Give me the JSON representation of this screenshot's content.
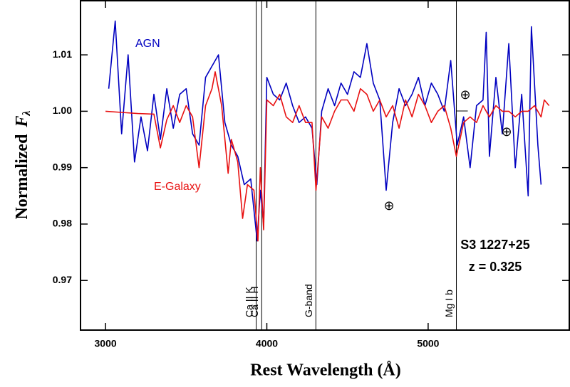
{
  "chart_data": {
    "type": "line",
    "xlabel": "Rest Wavelength  (Å)",
    "ylabel": {
      "text": "Normalized",
      "symbol": "F",
      "subscript": "λ"
    },
    "xlim": [
      2845,
      5875
    ],
    "ylim": [
      0.9612,
      1.0196
    ],
    "xticks": [
      3000,
      4000,
      5000
    ],
    "yticks": [
      0.97,
      0.98,
      0.99,
      {
        "value": 1,
        "label": "1.00"
      },
      1.01
    ],
    "series": [
      {
        "name": "AGN",
        "color": "#0000c0",
        "x": [
          3020,
          3060,
          3100,
          3140,
          3180,
          3220,
          3260,
          3300,
          3340,
          3380,
          3420,
          3460,
          3500,
          3540,
          3580,
          3620,
          3660,
          3700,
          3740,
          3780,
          3820,
          3860,
          3900,
          3940,
          3960,
          3980,
          4000,
          4040,
          4080,
          4120,
          4160,
          4200,
          4240,
          4280,
          4310,
          4340,
          4380,
          4420,
          4460,
          4500,
          4540,
          4580,
          4620,
          4660,
          4700,
          4740,
          4780,
          4820,
          4860,
          4900,
          4940,
          4980,
          5020,
          5060,
          5100,
          5140,
          5180,
          5220,
          5260,
          5300,
          5340,
          5360,
          5380,
          5420,
          5460,
          5500,
          5540,
          5580,
          5620,
          5640,
          5680,
          5700
        ],
        "values": [
          1.004,
          1.016,
          0.996,
          1.01,
          0.991,
          0.999,
          0.993,
          1.003,
          0.995,
          1.004,
          0.997,
          1.003,
          1.004,
          0.996,
          0.994,
          1.006,
          1.008,
          1.01,
          0.998,
          0.994,
          0.992,
          0.987,
          0.988,
          0.977,
          0.986,
          0.98,
          1.006,
          1.003,
          1.002,
          1.005,
          1.001,
          0.998,
          0.999,
          0.997,
          0.987,
          1.0,
          1.004,
          1.001,
          1.005,
          1.003,
          1.007,
          1.006,
          1.012,
          1.005,
          1.002,
          0.986,
          0.998,
          1.004,
          1.001,
          1.003,
          1.006,
          1.001,
          1.005,
          1.003,
          1.0,
          1.009,
          0.994,
          0.999,
          0.99,
          1.001,
          1.002,
          1.014,
          0.992,
          1.006,
          0.996,
          1.012,
          0.99,
          1.003,
          0.985,
          1.015,
          0.994,
          0.987
        ]
      },
      {
        "name": "E-Galaxy",
        "color": "#e81010",
        "x": [
          3000,
          3100,
          3200,
          3300,
          3340,
          3380,
          3420,
          3460,
          3500,
          3540,
          3580,
          3620,
          3660,
          3680,
          3720,
          3760,
          3780,
          3820,
          3850,
          3880,
          3920,
          3945,
          3960,
          3980,
          4000,
          4040,
          4080,
          4120,
          4160,
          4200,
          4240,
          4280,
          4305,
          4340,
          4380,
          4420,
          4460,
          4500,
          4540,
          4580,
          4620,
          4660,
          4700,
          4740,
          4780,
          4820,
          4860,
          4900,
          4940,
          4980,
          5020,
          5060,
          5100,
          5140,
          5175,
          5220,
          5260,
          5300,
          5340,
          5380,
          5420,
          5460,
          5500,
          5540,
          5580,
          5620,
          5660,
          5700,
          5720,
          5750
        ],
        "values": [
          1.0,
          0.9998,
          0.9996,
          0.9995,
          0.9935,
          0.9985,
          1.001,
          0.998,
          1.001,
          0.999,
          0.99,
          1.001,
          1.004,
          1.007,
          1.001,
          0.989,
          0.995,
          0.991,
          0.981,
          0.987,
          0.986,
          0.977,
          0.99,
          0.979,
          1.002,
          1.001,
          1.003,
          0.999,
          0.998,
          1.001,
          0.998,
          0.998,
          0.986,
          0.999,
          0.997,
          1.0,
          1.002,
          1.002,
          1.0,
          1.004,
          1.003,
          1.0,
          1.002,
          0.999,
          1.001,
          0.997,
          1.002,
          0.999,
          1.003,
          1.001,
          0.998,
          1.0,
          1.001,
          0.997,
          0.992,
          0.998,
          0.999,
          0.998,
          1.001,
          0.999,
          1.001,
          1.0,
          1.0,
          0.999,
          1.0,
          1.0,
          1.001,
          0.999,
          1.002,
          1.001
        ]
      }
    ],
    "lines": [
      {
        "label": "Ca II K",
        "x": 3934
      },
      {
        "label": "Ca II H",
        "x": 3968
      },
      {
        "label": "G-band",
        "x": 4304
      },
      {
        "label": "Mg I b",
        "x": 5175
      }
    ],
    "annotations": [
      "⊕",
      "⊕",
      "⊕",
      "S3 1227+25",
      "z = 0.325"
    ]
  }
}
